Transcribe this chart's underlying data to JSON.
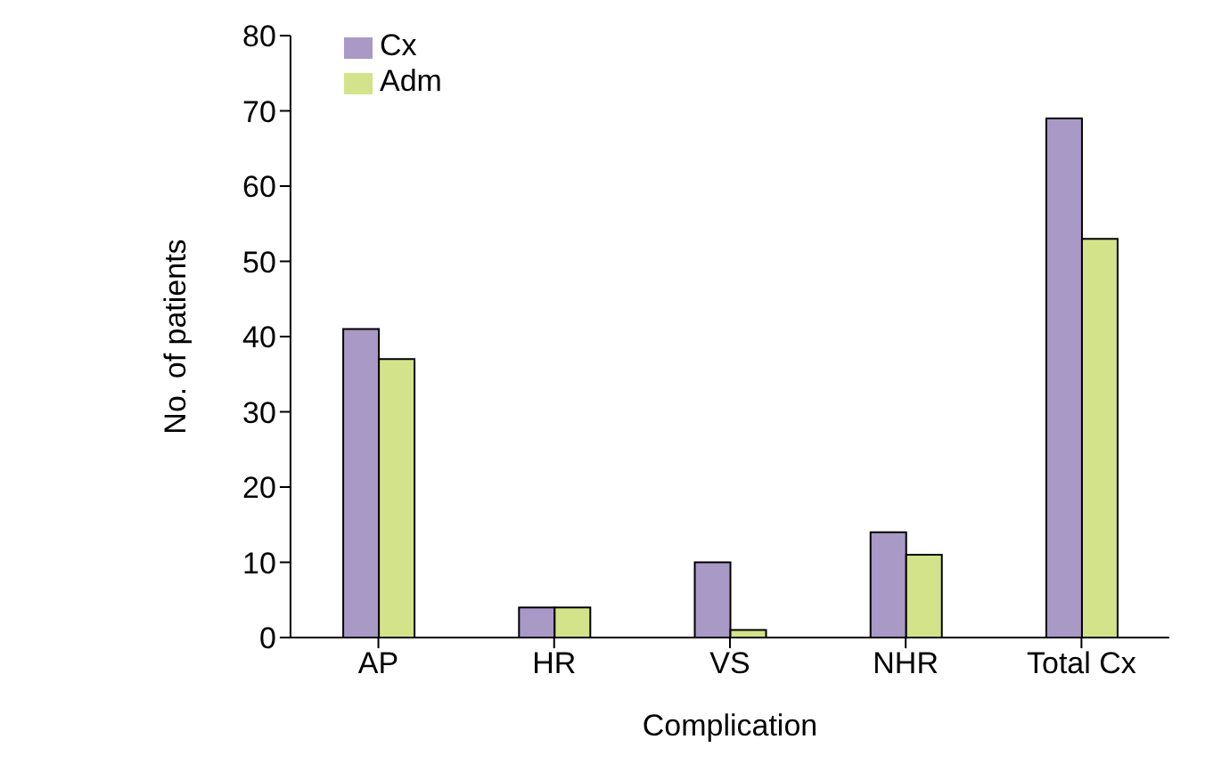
{
  "chart_data": {
    "type": "bar",
    "xlabel": "Complication",
    "ylabel": "No. of patients",
    "categories": [
      "AP",
      "HR",
      "VS",
      "NHR",
      "Total Cx"
    ],
    "series": [
      {
        "name": "Cx",
        "color": "#a899c6",
        "values": [
          41,
          4,
          10,
          14,
          69
        ]
      },
      {
        "name": "Adm",
        "color": "#d3e38a",
        "values": [
          37,
          4,
          1,
          11,
          53
        ]
      }
    ],
    "ylim": [
      0,
      80
    ],
    "yticks": [
      0,
      10,
      20,
      30,
      40,
      50,
      60,
      70,
      80
    ],
    "grid": false,
    "legend": "top left"
  }
}
